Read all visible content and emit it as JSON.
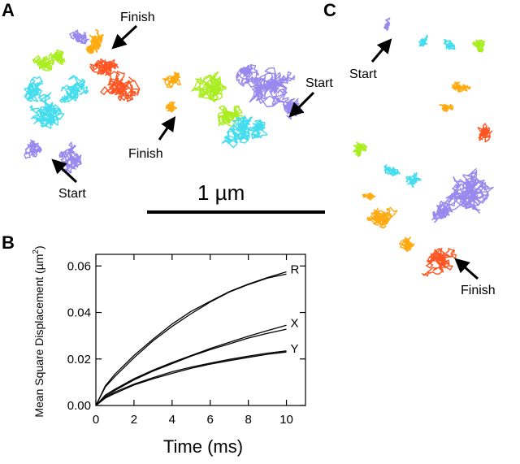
{
  "panels": {
    "A": {
      "letter": "A",
      "annotations": {
        "finish_top": "Finish",
        "start_bottom": "Start",
        "start_right": "Start",
        "finish_middle": "Finish"
      }
    },
    "B": {
      "letter": "B"
    },
    "C": {
      "letter": "C",
      "annotations": {
        "start": "Start",
        "finish": "Finish"
      }
    }
  },
  "scale_bar": {
    "label": "1 µm"
  },
  "trajectory_colors": [
    "#9988ee",
    "#ff5522",
    "#ffaa11",
    "#aaee22",
    "#44ddee"
  ],
  "chart_data": {
    "type": "line",
    "title": "",
    "xlabel": "Time (ms)",
    "ylabel_main": "Mean Square Displacement (µm",
    "ylabel_sup": "2",
    "ylabel_close": ")",
    "xlim": [
      0,
      11
    ],
    "ylim": [
      0,
      0.065
    ],
    "xticks": [
      0,
      2,
      4,
      6,
      8,
      10
    ],
    "yticks": [
      0.0,
      0.02,
      0.04,
      0.06
    ],
    "ytick_labels": [
      "0.00",
      "0.02",
      "0.04",
      "0.06"
    ],
    "grid": false,
    "x": [
      0,
      0.5,
      1,
      2,
      3,
      4,
      5,
      6,
      7,
      8,
      9,
      10
    ],
    "series": [
      {
        "name": "R",
        "values": [
          0,
          0.0085,
          0.0135,
          0.0215,
          0.0285,
          0.035,
          0.0405,
          0.0448,
          0.049,
          0.0522,
          0.055,
          0.0575
        ]
      },
      {
        "name": "",
        "values": [
          0,
          0.008,
          0.0125,
          0.0205,
          0.0278,
          0.034,
          0.0395,
          0.0445,
          0.0488,
          0.052,
          0.0548,
          0.0565
        ]
      },
      {
        "name": "X",
        "values": [
          0,
          0.0045,
          0.007,
          0.0115,
          0.0152,
          0.0185,
          0.0215,
          0.0245,
          0.0272,
          0.0298,
          0.0322,
          0.0345
        ]
      },
      {
        "name": "",
        "values": [
          0,
          0.004,
          0.0065,
          0.011,
          0.0148,
          0.018,
          0.0212,
          0.024,
          0.0265,
          0.029,
          0.031,
          0.0328
        ]
      },
      {
        "name": "Y",
        "values": [
          0,
          0.0035,
          0.0058,
          0.0092,
          0.012,
          0.0145,
          0.0165,
          0.0182,
          0.0198,
          0.0212,
          0.0225,
          0.0235
        ]
      },
      {
        "name": "",
        "values": [
          0,
          0.0032,
          0.0052,
          0.0088,
          0.0115,
          0.0138,
          0.016,
          0.0178,
          0.0193,
          0.0207,
          0.022,
          0.023
        ]
      }
    ]
  }
}
